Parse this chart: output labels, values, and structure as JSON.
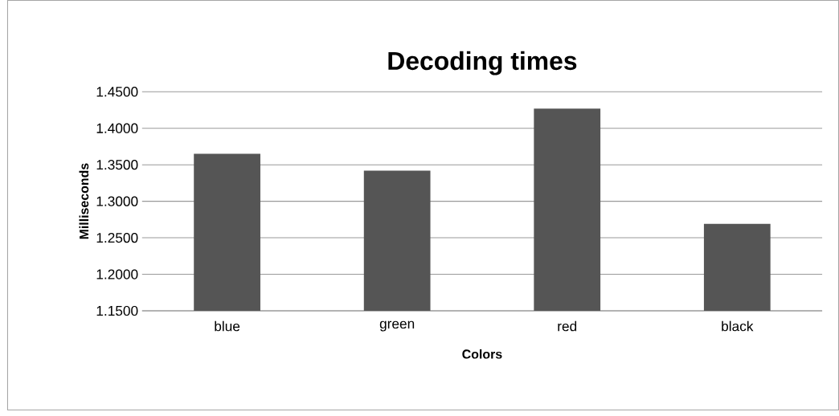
{
  "chart_data": {
    "type": "bar",
    "title": "Decoding times",
    "xlabel": "Colors",
    "ylabel": "Milliseconds",
    "categories": [
      "blue",
      "green",
      "red",
      "black"
    ],
    "values": [
      1.365,
      1.342,
      1.427,
      1.269
    ],
    "color": "#555555",
    "ylim": [
      1.15,
      1.45
    ],
    "yticks": [
      {
        "value": 1.15,
        "label": "1.1500"
      },
      {
        "value": 1.2,
        "label": "1.2000"
      },
      {
        "value": 1.25,
        "label": "1.2500"
      },
      {
        "value": 1.3,
        "label": "1.3000"
      },
      {
        "value": 1.35,
        "label": "1.3500"
      },
      {
        "value": 1.4,
        "label": "1.4000"
      },
      {
        "value": 1.45,
        "label": "1.4500"
      }
    ],
    "grid": "y"
  }
}
